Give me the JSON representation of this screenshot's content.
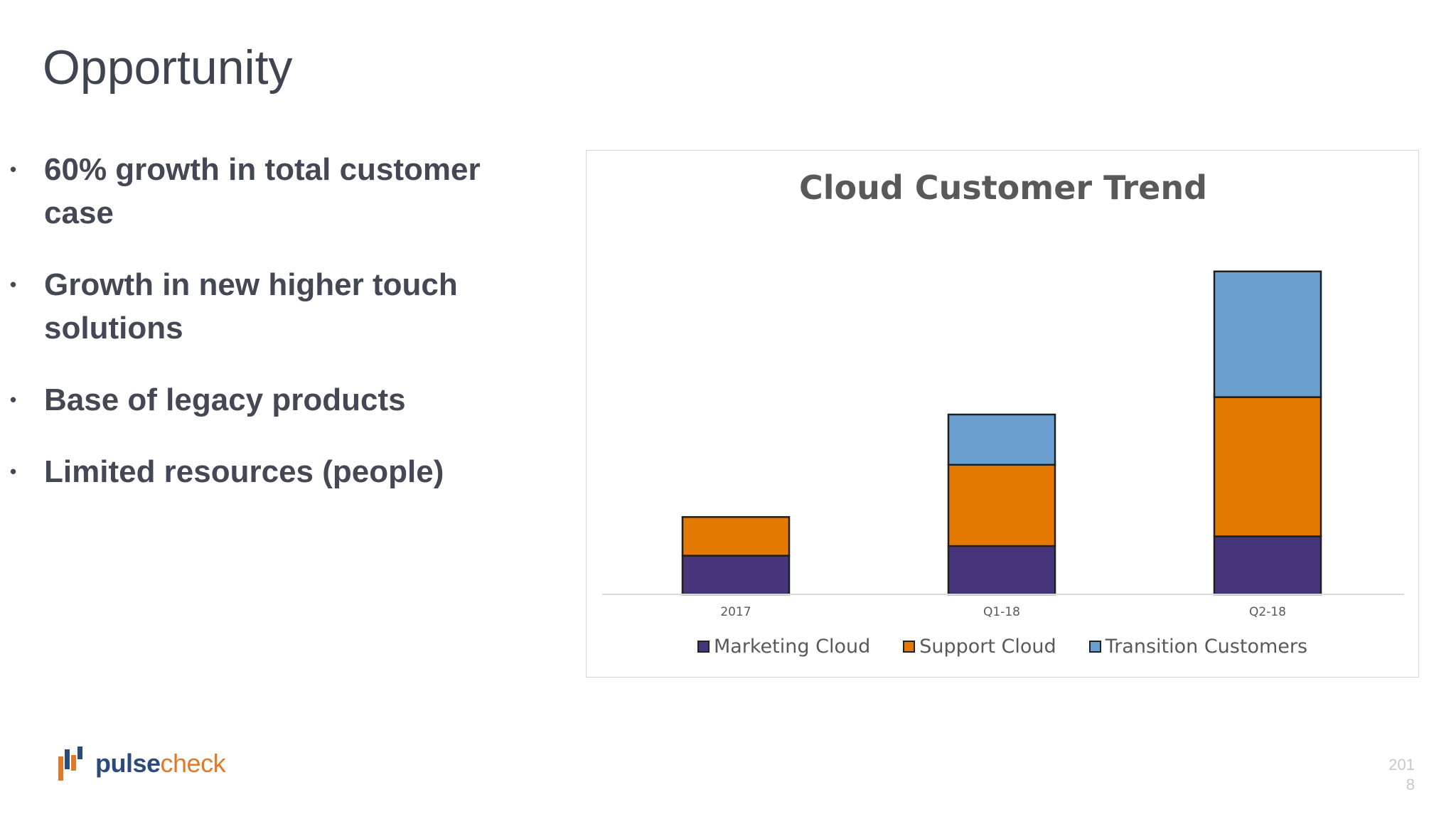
{
  "slide": {
    "title": "Opportunity",
    "bullets": [
      "60% growth in total customer case",
      "Growth in new higher touch solutions",
      "Base of legacy products",
      "Limited resources (people)"
    ],
    "bullet_glyph": "•"
  },
  "footer": {
    "logo_pulse": "pulse",
    "logo_check": "check",
    "page_line1": "201",
    "page_line2": "8"
  },
  "colors": {
    "marketing": "#46357a",
    "support": "#e57a03",
    "transition": "#6a9fd0",
    "logo_blue": "#2c4a7a",
    "logo_orange": "#e07a2a"
  },
  "chart_data": {
    "type": "bar",
    "stacked": true,
    "title": "Cloud Customer Trend",
    "categories": [
      "2017",
      "Q1-18",
      "Q2-18"
    ],
    "series": [
      {
        "name": "Marketing Cloud",
        "values": [
          10,
          12.5,
          15
        ]
      },
      {
        "name": "Support Cloud",
        "values": [
          10,
          21,
          36
        ]
      },
      {
        "name": "Transition Customers",
        "values": [
          0,
          13,
          32.5
        ]
      }
    ],
    "ylim": [
      0,
      100
    ],
    "grid": false,
    "legend": "bottom"
  }
}
